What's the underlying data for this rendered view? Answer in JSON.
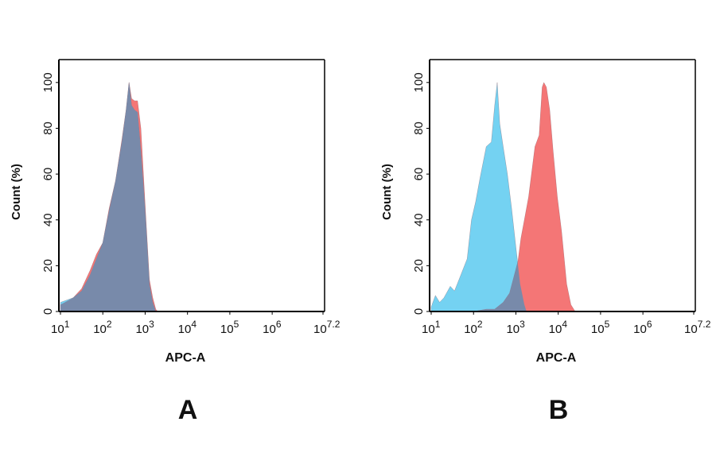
{
  "colors": {
    "isotype": "#74d2f2",
    "antibody": "#f47676",
    "overlap": "#788aaa"
  },
  "chart_data": [
    {
      "type": "area",
      "panel_label": "A",
      "xlabel": "APC-A",
      "ylabel": "Count  (%)",
      "xscale": "log",
      "xlim_log10": [
        1,
        7.2
      ],
      "ylim": [
        0,
        110
      ],
      "yticks": [
        "0",
        "20",
        "40",
        "60",
        "80",
        "100"
      ],
      "xticks": [
        {
          "base": "10",
          "exp": "1"
        },
        {
          "base": "10",
          "exp": "2"
        },
        {
          "base": "10",
          "exp": "3"
        },
        {
          "base": "10",
          "exp": "4"
        },
        {
          "base": "10",
          "exp": "5"
        },
        {
          "base": "10",
          "exp": "6"
        },
        {
          "base": "10",
          "exp": "7.2"
        }
      ],
      "grid": false,
      "series": [
        {
          "color": "#f47676",
          "log10_x": [
            1.0,
            1.3,
            1.5,
            1.7,
            1.85,
            2.0,
            2.15,
            2.3,
            2.45,
            2.55,
            2.62,
            2.68,
            2.75,
            2.82,
            2.9,
            2.96,
            3.02,
            3.1,
            3.18,
            3.25,
            3.3
          ],
          "y": [
            3,
            6,
            10,
            18,
            25,
            30,
            45,
            57,
            75,
            88,
            100,
            93,
            92,
            92,
            80,
            60,
            40,
            14,
            6,
            1,
            0
          ]
        },
        {
          "color": "#74d2f2",
          "log10_x": [
            1.0,
            1.3,
            1.5,
            1.7,
            1.85,
            2.0,
            2.15,
            2.3,
            2.45,
            2.55,
            2.62,
            2.68,
            2.75,
            2.82,
            2.9,
            2.96,
            3.02,
            3.1,
            3.18,
            3.25
          ],
          "y": [
            4,
            6,
            9,
            16,
            23,
            30,
            44,
            57,
            74,
            88,
            100,
            90,
            88,
            87,
            70,
            55,
            38,
            12,
            4,
            0
          ]
        }
      ]
    },
    {
      "type": "area",
      "panel_label": "B",
      "xlabel": "APC-A",
      "ylabel": "Count  (%)",
      "xscale": "log",
      "xlim_log10": [
        1,
        7.2
      ],
      "ylim": [
        0,
        110
      ],
      "yticks": [
        "0",
        "20",
        "40",
        "60",
        "80",
        "100"
      ],
      "xticks": [
        {
          "base": "10",
          "exp": "1"
        },
        {
          "base": "10",
          "exp": "2"
        },
        {
          "base": "10",
          "exp": "3"
        },
        {
          "base": "10",
          "exp": "4"
        },
        {
          "base": "10",
          "exp": "5"
        },
        {
          "base": "10",
          "exp": "6"
        },
        {
          "base": "10",
          "exp": "7.2"
        }
      ],
      "grid": false,
      "series": [
        {
          "color": "#74d2f2",
          "log10_x": [
            1.0,
            1.1,
            1.2,
            1.3,
            1.45,
            1.55,
            1.7,
            1.85,
            1.95,
            2.05,
            2.15,
            2.3,
            2.42,
            2.5,
            2.56,
            2.62,
            2.7,
            2.8,
            2.9,
            3.0,
            3.1,
            3.2,
            3.25
          ],
          "y": [
            2,
            7,
            4,
            6,
            11,
            9,
            16,
            23,
            40,
            48,
            58,
            72,
            74,
            90,
            100,
            82,
            72,
            60,
            45,
            28,
            12,
            3,
            0
          ]
        },
        {
          "color": "#f47676",
          "log10_x": [
            2.0,
            2.3,
            2.5,
            2.7,
            2.85,
            2.95,
            3.05,
            3.12,
            3.2,
            3.3,
            3.45,
            3.55,
            3.62,
            3.66,
            3.72,
            3.8,
            3.88,
            3.98,
            4.08,
            4.2,
            4.3,
            4.4
          ],
          "y": [
            0,
            1,
            1,
            4,
            8,
            15,
            22,
            32,
            40,
            50,
            72,
            77,
            98,
            100,
            98,
            88,
            70,
            50,
            35,
            12,
            3,
            0
          ]
        }
      ]
    }
  ]
}
